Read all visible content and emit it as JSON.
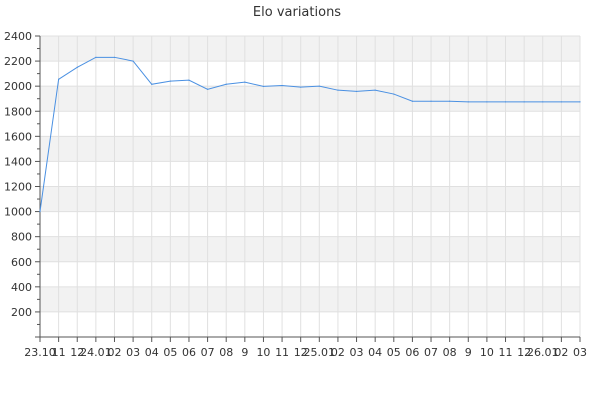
{
  "chart_data": {
    "type": "line",
    "title": "Elo variations",
    "xlabel": "",
    "ylabel": "",
    "ylim": [
      0,
      2400
    ],
    "yticks": [
      200,
      400,
      600,
      800,
      1000,
      1200,
      1400,
      1600,
      1800,
      2000,
      2200,
      2400
    ],
    "grid": true,
    "legend": "none",
    "categories": [
      "23.10",
      "11",
      "12",
      "24.01",
      "02",
      "03",
      "04",
      "05",
      "06",
      "07",
      "08",
      "9",
      "10",
      "11",
      "12",
      "25.01",
      "02",
      "03",
      "04",
      "05",
      "06",
      "07",
      "08",
      "9",
      "10",
      "11",
      "12",
      "26.01",
      "02",
      "03"
    ],
    "series": [
      {
        "values": [
          1000,
          2055,
          2150,
          2230,
          2230,
          2200,
          2015,
          2040,
          2048,
          1975,
          2015,
          2032,
          1998,
          2005,
          1992,
          2000,
          1968,
          1958,
          1968,
          1937,
          1880,
          1880,
          1880,
          1875,
          1875,
          1875,
          1875,
          1875,
          1875,
          1875
        ]
      }
    ],
    "colors": {
      "line": "#4a90e2",
      "band_light": "#ffffff",
      "band_dark": "#f2f2f2",
      "grid": "#e0e0e0",
      "axis": "#555555"
    }
  }
}
